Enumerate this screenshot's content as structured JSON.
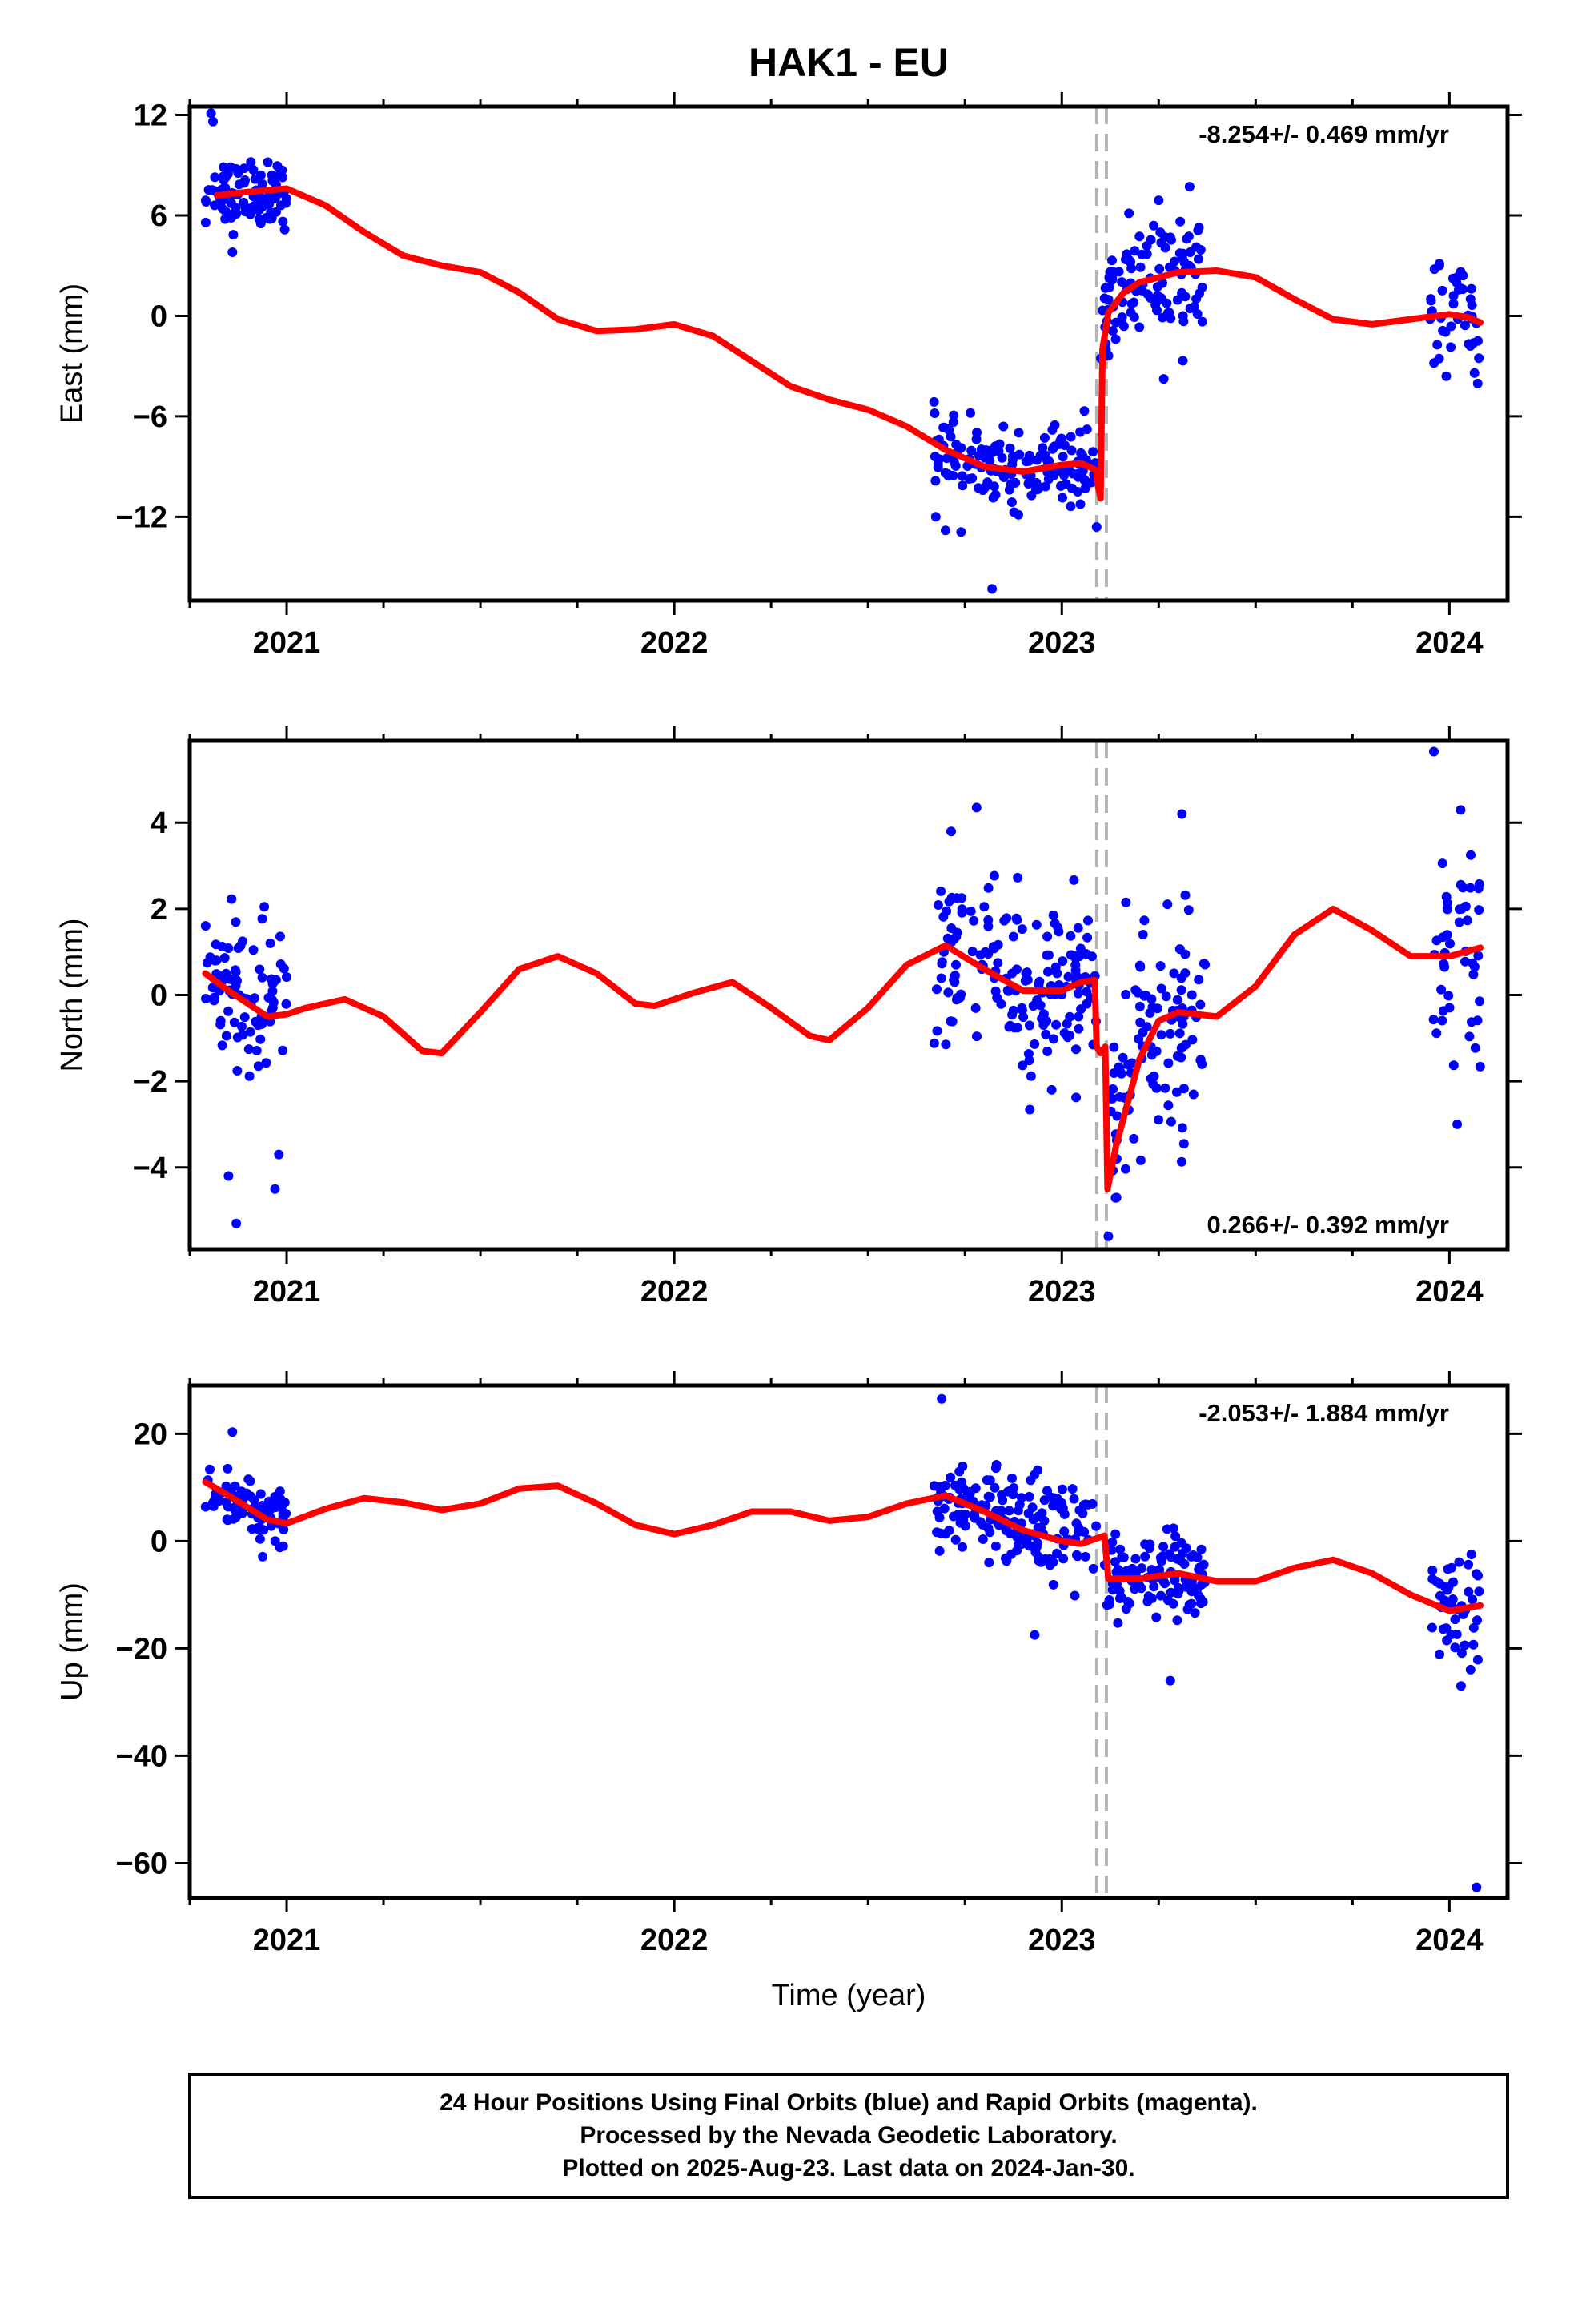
{
  "chart_data": {
    "type": "scatter",
    "title": "HAK1 - EU",
    "xlabel": "Time (year)",
    "xlim": [
      2020.75,
      2024.15
    ],
    "x_ticks": [
      "2021",
      "2022",
      "2023",
      "2024"
    ],
    "event_lines_x": [
      2023.09,
      2023.115
    ],
    "series_colors": {
      "points": "#0000ff",
      "model": "#ff0000",
      "events": "#b4b4b4"
    },
    "panels": [
      {
        "id": "east",
        "ylabel": "East (mm)",
        "ylim": [
          -17,
          12.5
        ],
        "yticks": [
          12,
          6,
          0,
          -6,
          -12
        ],
        "ytick_labels": [
          "12",
          "6",
          "0",
          "−6",
          "−12"
        ],
        "rate": "-8.254+/- 0.469 mm/yr",
        "rate_pos": "top-right",
        "offset_x": 2023.09,
        "model": {
          "before": [
            [
              2020.82,
              7.2
            ],
            [
              2020.9,
              7.4
            ],
            [
              2021.0,
              7.6
            ],
            [
              2021.1,
              6.6
            ],
            [
              2021.2,
              5.0
            ],
            [
              2021.3,
              3.6
            ],
            [
              2021.4,
              3.0
            ],
            [
              2021.5,
              2.6
            ],
            [
              2021.6,
              1.4
            ],
            [
              2021.7,
              -0.2
            ],
            [
              2021.8,
              -0.9
            ],
            [
              2021.9,
              -0.8
            ],
            [
              2022.0,
              -0.5
            ],
            [
              2022.1,
              -1.2
            ],
            [
              2022.2,
              -2.7
            ],
            [
              2022.3,
              -4.2
            ],
            [
              2022.4,
              -5.0
            ],
            [
              2022.5,
              -5.6
            ],
            [
              2022.6,
              -6.6
            ],
            [
              2022.7,
              -8.0
            ],
            [
              2022.8,
              -9.0
            ],
            [
              2022.9,
              -9.3
            ],
            [
              2023.0,
              -8.9
            ],
            [
              2023.05,
              -8.8
            ],
            [
              2023.088,
              -9.2
            ]
          ],
          "after": [
            [
              2023.092,
              -10.0
            ],
            [
              2023.1,
              -10.9
            ],
            [
              2023.105,
              -2.0
            ],
            [
              2023.12,
              0.2
            ],
            [
              2023.16,
              1.4
            ],
            [
              2023.2,
              2.0
            ],
            [
              2023.3,
              2.6
            ],
            [
              2023.4,
              2.7
            ],
            [
              2023.5,
              2.3
            ],
            [
              2023.6,
              1.0
            ],
            [
              2023.7,
              -0.2
            ],
            [
              2023.8,
              -0.5
            ],
            [
              2023.9,
              -0.2
            ],
            [
              2024.0,
              0.1
            ],
            [
              2024.05,
              -0.1
            ],
            [
              2024.08,
              -0.4
            ]
          ]
        },
        "clusters": [
          {
            "x0": 2020.79,
            "x1": 2021.0,
            "cy": 7.2,
            "sd": 1.0,
            "n": 95
          },
          {
            "x0": 2022.67,
            "x1": 2023.09,
            "cy": -8.8,
            "sd": 1.1,
            "n": 170
          },
          {
            "x0": 2023.1,
            "x1": 2023.37,
            "cy": 1.6,
            "sd": 2.0,
            "n": 115
          },
          {
            "x0": 2023.95,
            "x1": 2024.08,
            "cy": -0.6,
            "sd": 1.4,
            "n": 45
          }
        ],
        "outliers": [
          [
            2020.805,
            12.1
          ],
          [
            2020.81,
            11.6
          ],
          [
            2020.86,
            3.8
          ],
          [
            2022.7,
            -12.8
          ],
          [
            2022.74,
            -12.9
          ],
          [
            2022.82,
            -16.3
          ],
          [
            2023.25,
            6.9
          ],
          [
            2023.09,
            -12.6
          ]
        ]
      },
      {
        "id": "north",
        "ylabel": "North (mm)",
        "ylim": [
          -5.9,
          5.9
        ],
        "yticks": [
          4,
          2,
          0,
          -2,
          -4
        ],
        "ytick_labels": [
          "4",
          "2",
          "0",
          "−2",
          "−4"
        ],
        "rate": "0.266+/- 0.392 mm/yr",
        "rate_pos": "bottom-right",
        "offset_x": 2023.09,
        "model": {
          "before": [
            [
              2020.79,
              0.5
            ],
            [
              2020.85,
              0.1
            ],
            [
              2020.95,
              -0.5
            ],
            [
              2021.0,
              -0.45
            ],
            [
              2021.05,
              -0.3
            ],
            [
              2021.15,
              -0.1
            ],
            [
              2021.25,
              -0.5
            ],
            [
              2021.35,
              -1.3
            ],
            [
              2021.4,
              -1.35
            ],
            [
              2021.5,
              -0.4
            ],
            [
              2021.6,
              0.6
            ],
            [
              2021.7,
              0.9
            ],
            [
              2021.8,
              0.5
            ],
            [
              2021.9,
              -0.2
            ],
            [
              2021.95,
              -0.25
            ],
            [
              2022.05,
              0.05
            ],
            [
              2022.15,
              0.3
            ],
            [
              2022.25,
              -0.3
            ],
            [
              2022.35,
              -0.95
            ],
            [
              2022.4,
              -1.05
            ],
            [
              2022.5,
              -0.3
            ],
            [
              2022.6,
              0.7
            ],
            [
              2022.7,
              1.15
            ],
            [
              2022.8,
              0.6
            ],
            [
              2022.9,
              0.1
            ],
            [
              2023.0,
              0.1
            ],
            [
              2023.05,
              0.3
            ],
            [
              2023.085,
              0.35
            ]
          ],
          "after": [
            [
              2023.09,
              -1.2
            ],
            [
              2023.1,
              -1.35
            ],
            [
              2023.112,
              -1.2
            ],
            [
              2023.118,
              -4.5
            ],
            [
              2023.14,
              -3.5
            ],
            [
              2023.2,
              -1.5
            ],
            [
              2023.25,
              -0.6
            ],
            [
              2023.3,
              -0.4
            ],
            [
              2023.4,
              -0.5
            ],
            [
              2023.5,
              0.2
            ],
            [
              2023.6,
              1.4
            ],
            [
              2023.7,
              2.0
            ],
            [
              2023.8,
              1.5
            ],
            [
              2023.9,
              0.9
            ],
            [
              2024.0,
              0.9
            ],
            [
              2024.08,
              1.1
            ]
          ]
        },
        "clusters": [
          {
            "x0": 2020.79,
            "x1": 2021.0,
            "cy": 0.2,
            "sd": 1.0,
            "n": 85
          },
          {
            "x0": 2022.67,
            "x1": 2023.09,
            "cy": 0.3,
            "sd": 1.0,
            "n": 170
          },
          {
            "x0": 2023.12,
            "x1": 2023.37,
            "cy": -1.1,
            "sd": 1.3,
            "n": 110
          },
          {
            "x0": 2023.95,
            "x1": 2024.08,
            "cy": 1.0,
            "sd": 1.3,
            "n": 45
          }
        ],
        "outliers": [
          [
            2020.85,
            -4.2
          ],
          [
            2020.87,
            -5.3
          ],
          [
            2020.97,
            -4.5
          ],
          [
            2020.98,
            -3.7
          ],
          [
            2022.78,
            4.35
          ],
          [
            2023.31,
            4.2
          ],
          [
            2023.96,
            5.65
          ],
          [
            2023.12,
            -5.6
          ],
          [
            2024.02,
            -3.0
          ]
        ]
      },
      {
        "id": "up",
        "ylabel": "Up (mm)",
        "ylim": [
          -66.5,
          29
        ],
        "yticks": [
          20,
          0,
          -20,
          -40,
          -60
        ],
        "ytick_labels": [
          "20",
          "0",
          "−20",
          "−40",
          "−60"
        ],
        "rate": "-2.053+/- 1.884 mm/yr",
        "rate_pos": "top-right",
        "offset_x": 2023.115,
        "model": {
          "before": [
            [
              2020.79,
              11.0
            ],
            [
              2020.85,
              8.5
            ],
            [
              2020.95,
              4.0
            ],
            [
              2021.0,
              3.3
            ],
            [
              2021.1,
              6.0
            ],
            [
              2021.2,
              8.0
            ],
            [
              2021.3,
              7.2
            ],
            [
              2021.4,
              5.8
            ],
            [
              2021.5,
              7.0
            ],
            [
              2021.6,
              9.8
            ],
            [
              2021.7,
              10.3
            ],
            [
              2021.8,
              7.0
            ],
            [
              2021.9,
              3.0
            ],
            [
              2022.0,
              1.3
            ],
            [
              2022.1,
              3.0
            ],
            [
              2022.2,
              5.5
            ],
            [
              2022.3,
              5.5
            ],
            [
              2022.4,
              3.8
            ],
            [
              2022.5,
              4.5
            ],
            [
              2022.6,
              7.0
            ],
            [
              2022.7,
              8.5
            ],
            [
              2022.8,
              5.5
            ],
            [
              2022.9,
              2.0
            ],
            [
              2023.0,
              0.0
            ],
            [
              2023.05,
              -0.5
            ],
            [
              2023.11,
              1.0
            ]
          ],
          "after": [
            [
              2023.12,
              -7.0
            ],
            [
              2023.2,
              -7.0
            ],
            [
              2023.3,
              -6.0
            ],
            [
              2023.4,
              -7.5
            ],
            [
              2023.5,
              -7.5
            ],
            [
              2023.6,
              -5.0
            ],
            [
              2023.7,
              -3.5
            ],
            [
              2023.8,
              -6.0
            ],
            [
              2023.9,
              -10.0
            ],
            [
              2024.0,
              -13.0
            ],
            [
              2024.08,
              -12.0
            ]
          ]
        },
        "clusters": [
          {
            "x0": 2020.79,
            "x1": 2021.0,
            "cy": 7.0,
            "sd": 3.0,
            "n": 90
          },
          {
            "x0": 2022.67,
            "x1": 2023.09,
            "cy": 4.0,
            "sd": 4.5,
            "n": 175
          },
          {
            "x0": 2023.11,
            "x1": 2023.37,
            "cy": -7.5,
            "sd": 4.0,
            "n": 115
          },
          {
            "x0": 2023.95,
            "x1": 2024.08,
            "cy": -12.0,
            "sd": 4.5,
            "n": 45
          }
        ],
        "outliers": [
          [
            2020.86,
            20.3
          ],
          [
            2022.69,
            26.5
          ],
          [
            2022.93,
            -17.5
          ],
          [
            2023.28,
            -26.0
          ],
          [
            2024.07,
            -64.5
          ],
          [
            2024.03,
            -27.0
          ]
        ]
      }
    ]
  },
  "footer": {
    "line1": "24 Hour Positions Using Final Orbits (blue) and Rapid Orbits (magenta).",
    "line2": "Processed by the Nevada Geodetic Laboratory.",
    "line3": "Plotted on 2025-Aug-23. Last data on 2024-Jan-30."
  }
}
